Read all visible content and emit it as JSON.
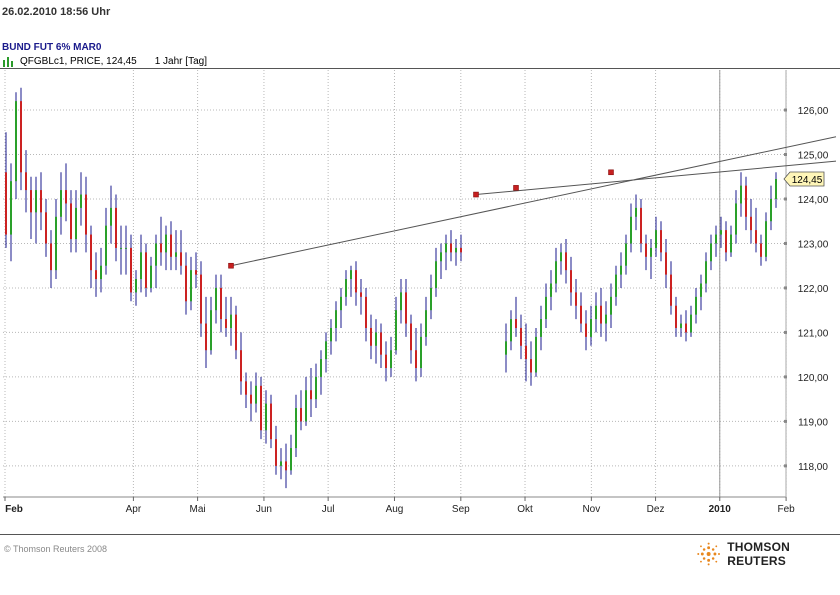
{
  "header": {
    "timestamp": "26.02.2010 18:56 Uhr",
    "instrument": "BUND FUT 6% MAR0",
    "series_label": "QFGBLc1, PRICE, 124,45",
    "period": "1 Jahr [Tag]"
  },
  "footer": {
    "copyright": "© Thomson Reuters 2008",
    "brand": "THOMSON REUTERS"
  },
  "chart_data": {
    "type": "ohlc",
    "ylim": [
      117.3,
      126.9
    ],
    "y_ticks": [
      "126,00",
      "125,00",
      "124,00",
      "123,00",
      "122,00",
      "121,00",
      "120,00",
      "119,00",
      "118,00"
    ],
    "y_tick_values": [
      126,
      125,
      124,
      123,
      122,
      121,
      120,
      119,
      118
    ],
    "x_ticks": [
      "Feb",
      "Apr",
      "Mai",
      "Jun",
      "Jul",
      "Aug",
      "Sep",
      "Okt",
      "Nov",
      "Dez",
      "2010",
      "Feb"
    ],
    "x_tick_days": [
      0,
      60,
      90,
      121,
      151,
      182,
      213,
      243,
      274,
      304,
      334,
      365
    ],
    "last_price_label": "124,45",
    "colors": {
      "up": "#2aa02a",
      "down": "#cc2222",
      "wick": "#1a1a8c",
      "trend": "#555555"
    },
    "ohlc": [
      [
        0,
        124.6,
        125.5,
        122.9,
        123.2
      ],
      [
        1,
        123.2,
        124.8,
        122.6,
        124.4
      ],
      [
        2,
        124.4,
        126.4,
        124.0,
        126.2
      ],
      [
        3,
        126.2,
        126.5,
        124.2,
        124.6
      ],
      [
        4,
        124.6,
        125.1,
        123.7,
        124.2
      ],
      [
        5,
        124.2,
        124.5,
        123.1,
        123.7
      ],
      [
        6,
        123.7,
        124.5,
        123.0,
        124.2
      ],
      [
        7,
        124.2,
        124.6,
        123.3,
        123.7
      ],
      [
        8,
        123.7,
        124.0,
        122.7,
        123.0
      ],
      [
        9,
        123.0,
        123.3,
        122.0,
        122.4
      ],
      [
        10,
        122.4,
        124.0,
        122.2,
        123.6
      ],
      [
        11,
        123.6,
        124.6,
        123.2,
        124.2
      ],
      [
        12,
        124.2,
        124.8,
        123.5,
        123.9
      ],
      [
        13,
        123.9,
        124.2,
        122.8,
        123.1
      ],
      [
        14,
        123.1,
        124.2,
        122.8,
        123.8
      ],
      [
        15,
        123.8,
        124.6,
        123.4,
        124.1
      ],
      [
        16,
        124.1,
        124.5,
        122.8,
        123.2
      ],
      [
        17,
        123.2,
        123.4,
        122.0,
        122.4
      ],
      [
        18,
        122.4,
        122.8,
        121.8,
        122.2
      ],
      [
        19,
        122.2,
        122.9,
        121.9,
        122.5
      ],
      [
        20,
        122.5,
        123.8,
        122.3,
        123.4
      ],
      [
        21,
        123.4,
        124.3,
        123.0,
        123.8
      ],
      [
        22,
        123.8,
        124.1,
        122.6,
        122.9
      ],
      [
        23,
        122.9,
        123.4,
        122.3,
        122.9
      ],
      [
        24,
        122.9,
        123.4,
        122.3,
        122.9
      ],
      [
        25,
        122.9,
        123.2,
        121.7,
        121.9
      ],
      [
        26,
        121.9,
        122.4,
        121.6,
        122.2
      ],
      [
        27,
        122.2,
        123.2,
        121.9,
        122.8
      ],
      [
        28,
        122.8,
        123.0,
        121.8,
        122.0
      ],
      [
        29,
        122.0,
        122.7,
        121.9,
        122.5
      ],
      [
        30,
        122.5,
        123.2,
        122.0,
        123.0
      ],
      [
        31,
        123.0,
        123.6,
        122.5,
        122.8
      ],
      [
        32,
        122.8,
        123.4,
        122.4,
        123.2
      ],
      [
        33,
        123.2,
        123.5,
        122.4,
        122.7
      ],
      [
        34,
        122.7,
        123.3,
        122.4,
        122.8
      ],
      [
        35,
        122.8,
        123.3,
        122.3,
        122.5
      ],
      [
        36,
        122.5,
        122.8,
        121.4,
        121.7
      ],
      [
        37,
        121.7,
        122.7,
        121.5,
        122.4
      ],
      [
        38,
        122.4,
        122.8,
        122.0,
        122.3
      ],
      [
        39,
        122.3,
        122.6,
        120.9,
        121.2
      ],
      [
        40,
        121.2,
        121.8,
        120.2,
        120.6
      ],
      [
        41,
        120.6,
        121.8,
        120.5,
        121.5
      ],
      [
        42,
        121.5,
        122.3,
        121.2,
        122.0
      ],
      [
        43,
        122.0,
        122.3,
        121.0,
        121.3
      ],
      [
        44,
        121.3,
        121.8,
        120.9,
        121.1
      ],
      [
        45,
        121.1,
        121.8,
        120.7,
        121.4
      ],
      [
        46,
        121.4,
        121.6,
        120.4,
        120.6
      ],
      [
        47,
        120.6,
        121.0,
        119.6,
        119.9
      ],
      [
        48,
        119.9,
        120.1,
        119.3,
        119.6
      ],
      [
        49,
        119.6,
        119.9,
        119.0,
        119.4
      ],
      [
        50,
        119.4,
        120.1,
        119.2,
        119.8
      ],
      [
        51,
        119.8,
        120.0,
        118.6,
        118.8
      ],
      [
        52,
        118.8,
        119.7,
        118.5,
        119.4
      ],
      [
        53,
        119.4,
        119.6,
        118.4,
        118.6
      ],
      [
        54,
        118.6,
        118.9,
        117.8,
        118.0
      ],
      [
        55,
        118.0,
        118.4,
        117.7,
        118.1
      ],
      [
        56,
        118.1,
        118.5,
        117.5,
        117.9
      ],
      [
        57,
        117.9,
        118.7,
        117.8,
        118.4
      ],
      [
        58,
        118.4,
        119.6,
        118.2,
        119.3
      ],
      [
        59,
        119.3,
        119.7,
        118.8,
        119.0
      ],
      [
        60,
        119.0,
        120.0,
        118.9,
        119.7
      ],
      [
        61,
        119.7,
        120.2,
        119.1,
        119.5
      ],
      [
        62,
        119.5,
        120.3,
        119.3,
        120.0
      ],
      [
        63,
        120.0,
        120.6,
        119.6,
        120.4
      ],
      [
        64,
        120.4,
        121.0,
        120.1,
        120.8
      ],
      [
        65,
        120.8,
        121.3,
        120.5,
        121.1
      ],
      [
        66,
        121.1,
        121.7,
        120.8,
        121.5
      ],
      [
        67,
        121.5,
        122.0,
        121.1,
        121.8
      ],
      [
        68,
        121.8,
        122.4,
        121.6,
        122.2
      ],
      [
        69,
        122.2,
        122.5,
        121.8,
        122.4
      ],
      [
        70,
        122.4,
        122.6,
        121.6,
        121.9
      ],
      [
        71,
        121.9,
        122.2,
        121.4,
        121.8
      ],
      [
        72,
        121.8,
        122.0,
        120.8,
        121.1
      ],
      [
        73,
        121.1,
        121.4,
        120.4,
        120.7
      ],
      [
        74,
        120.7,
        121.3,
        120.3,
        121.0
      ],
      [
        75,
        121.0,
        121.2,
        120.2,
        120.5
      ],
      [
        76,
        120.5,
        120.8,
        119.9,
        120.2
      ],
      [
        77,
        120.2,
        120.9,
        120.0,
        120.6
      ],
      [
        78,
        120.6,
        121.8,
        120.5,
        121.5
      ],
      [
        79,
        121.5,
        122.2,
        121.2,
        121.9
      ],
      [
        80,
        121.9,
        122.2,
        120.9,
        121.2
      ],
      [
        81,
        121.2,
        121.4,
        120.3,
        120.6
      ],
      [
        82,
        120.6,
        121.1,
        119.9,
        120.2
      ],
      [
        83,
        120.2,
        121.2,
        120.0,
        120.9
      ],
      [
        84,
        120.9,
        121.8,
        120.7,
        121.5
      ],
      [
        85,
        121.5,
        122.3,
        121.3,
        122.0
      ],
      [
        86,
        122.0,
        122.9,
        121.8,
        122.6
      ],
      [
        87,
        122.6,
        123.0,
        122.2,
        122.8
      ],
      [
        88,
        122.8,
        123.2,
        122.4,
        123.0
      ],
      [
        89,
        123.0,
        123.3,
        122.6,
        122.8
      ],
      [
        90,
        122.8,
        123.1,
        122.5,
        122.9
      ],
      [
        91,
        122.9,
        123.2,
        122.6,
        122.8
      ],
      [
        100,
        120.5,
        121.2,
        120.1,
        120.8
      ],
      [
        101,
        120.8,
        121.5,
        120.6,
        121.3
      ],
      [
        102,
        121.3,
        121.8,
        120.9,
        121.1
      ],
      [
        103,
        121.1,
        121.4,
        120.4,
        120.7
      ],
      [
        104,
        120.7,
        121.2,
        119.9,
        120.4
      ],
      [
        105,
        120.4,
        120.8,
        119.8,
        120.1
      ],
      [
        106,
        120.1,
        121.1,
        120.0,
        120.9
      ],
      [
        107,
        120.9,
        121.6,
        120.6,
        121.3
      ],
      [
        108,
        121.3,
        122.1,
        121.1,
        121.8
      ],
      [
        109,
        121.8,
        122.4,
        121.5,
        122.1
      ],
      [
        110,
        122.1,
        122.9,
        121.9,
        122.6
      ],
      [
        111,
        122.6,
        123.0,
        122.3,
        122.8
      ],
      [
        112,
        122.8,
        123.1,
        122.1,
        122.4
      ],
      [
        113,
        122.4,
        122.7,
        121.6,
        121.9
      ],
      [
        114,
        121.9,
        122.2,
        121.3,
        121.6
      ],
      [
        115,
        121.6,
        121.9,
        121.0,
        121.2
      ],
      [
        116,
        121.2,
        121.5,
        120.6,
        120.9
      ],
      [
        117,
        120.9,
        121.6,
        120.7,
        121.3
      ],
      [
        118,
        121.3,
        121.9,
        121.0,
        121.6
      ],
      [
        119,
        121.6,
        122.0,
        120.9,
        121.2
      ],
      [
        120,
        121.2,
        121.7,
        120.8,
        121.4
      ],
      [
        121,
        121.4,
        122.1,
        121.1,
        121.8
      ],
      [
        122,
        121.8,
        122.5,
        121.6,
        122.3
      ],
      [
        123,
        122.3,
        122.8,
        122.0,
        122.5
      ],
      [
        124,
        122.5,
        123.2,
        122.3,
        123.0
      ],
      [
        125,
        123.0,
        123.9,
        122.8,
        123.6
      ],
      [
        126,
        123.6,
        124.1,
        123.3,
        123.8
      ],
      [
        127,
        123.8,
        124.0,
        122.8,
        123.0
      ],
      [
        128,
        123.0,
        123.2,
        122.4,
        122.7
      ],
      [
        129,
        122.7,
        123.1,
        122.2,
        122.9
      ],
      [
        130,
        122.9,
        123.6,
        122.7,
        123.3
      ],
      [
        131,
        123.3,
        123.5,
        122.6,
        122.8
      ],
      [
        132,
        122.8,
        123.1,
        122.0,
        122.3
      ],
      [
        133,
        122.3,
        122.6,
        121.4,
        121.6
      ],
      [
        134,
        121.6,
        121.8,
        120.9,
        121.1
      ],
      [
        135,
        121.1,
        121.4,
        120.9,
        121.2
      ],
      [
        136,
        121.2,
        121.5,
        120.8,
        121.0
      ],
      [
        137,
        121.0,
        121.6,
        120.9,
        121.4
      ],
      [
        138,
        121.4,
        122.0,
        121.2,
        121.8
      ],
      [
        139,
        121.8,
        122.3,
        121.5,
        122.1
      ],
      [
        140,
        122.1,
        122.8,
        121.9,
        122.6
      ],
      [
        141,
        122.6,
        123.2,
        122.4,
        123.0
      ],
      [
        142,
        123.0,
        123.4,
        122.7,
        123.2
      ],
      [
        143,
        123.2,
        123.6,
        122.9,
        123.3
      ],
      [
        144,
        123.3,
        123.5,
        122.6,
        122.8
      ],
      [
        145,
        122.8,
        123.4,
        122.7,
        123.2
      ],
      [
        146,
        123.2,
        124.2,
        123.0,
        123.9
      ],
      [
        147,
        123.9,
        124.6,
        123.6,
        124.3
      ],
      [
        148,
        124.3,
        124.5,
        123.3,
        123.6
      ],
      [
        149,
        123.6,
        124.0,
        123.0,
        123.3
      ],
      [
        150,
        123.3,
        123.8,
        122.8,
        123.0
      ],
      [
        151,
        123.0,
        123.2,
        122.5,
        122.7
      ],
      [
        152,
        122.7,
        123.7,
        122.6,
        123.5
      ],
      [
        153,
        123.5,
        124.3,
        123.3,
        124.0
      ],
      [
        154,
        124.0,
        124.6,
        123.8,
        124.45
      ]
    ],
    "trendlines": [
      {
        "from": [
          45,
          122.5
        ],
        "to": [
          166,
          125.4
        ]
      },
      {
        "from": [
          94,
          124.1
        ],
        "to": [
          166,
          124.85
        ]
      }
    ],
    "pivot_markers": [
      [
        45,
        122.5
      ],
      [
        94,
        124.1
      ],
      [
        102,
        124.25
      ],
      [
        121,
        124.6
      ]
    ],
    "vline_day": 334
  }
}
